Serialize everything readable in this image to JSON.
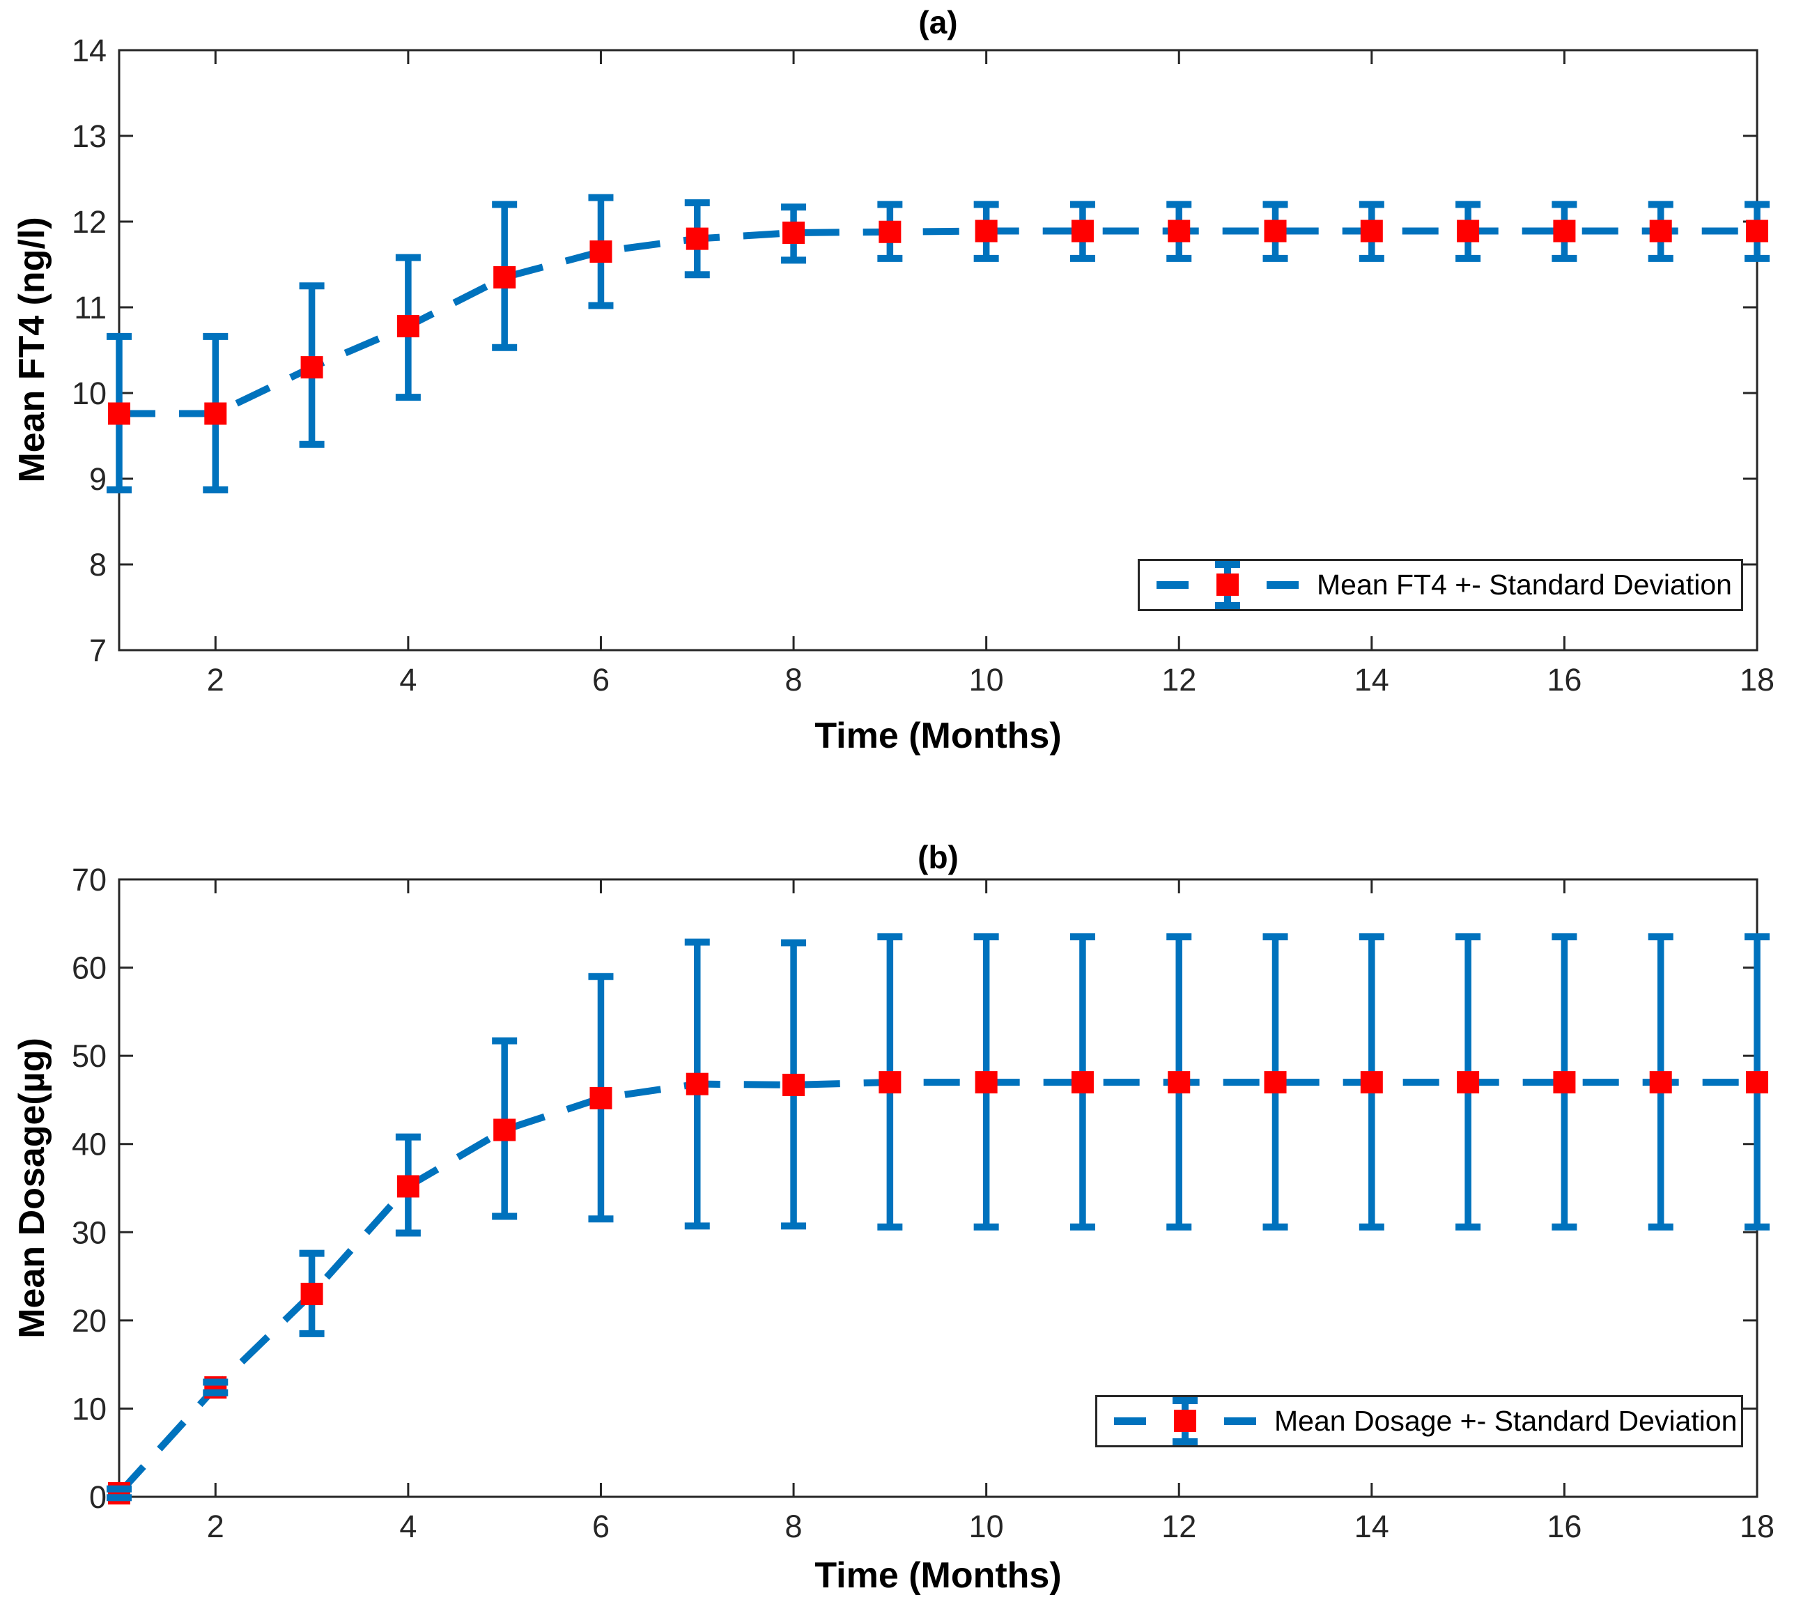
{
  "colors": {
    "line": "#0072BD",
    "marker": "#FF0000",
    "axis": "#262626",
    "text": "#000000",
    "background": "#ffffff"
  },
  "chart_data": [
    {
      "type": "line",
      "title": "(a)",
      "xlabel": "Time (Months)",
      "ylabel": "Mean FT4 (ng/l)",
      "legend_position": "southeast",
      "grid": false,
      "xlim": [
        1,
        18
      ],
      "ylim": [
        7,
        14
      ],
      "xticks": [
        2,
        4,
        6,
        8,
        10,
        12,
        14,
        16,
        18
      ],
      "yticks": [
        7,
        8,
        9,
        10,
        11,
        12,
        13,
        14
      ],
      "line_style": "dashed",
      "marker": "square",
      "series": [
        {
          "name": "Mean FT4 +- Standard Deviation",
          "x": [
            1,
            2,
            3,
            4,
            5,
            6,
            7,
            8,
            9,
            10,
            11,
            12,
            13,
            14,
            15,
            16,
            17,
            18
          ],
          "mean": [
            9.76,
            9.76,
            10.3,
            10.78,
            11.35,
            11.65,
            11.8,
            11.87,
            11.88,
            11.89,
            11.89,
            11.89,
            11.89,
            11.89,
            11.89,
            11.89,
            11.89,
            11.89
          ],
          "upper": [
            10.66,
            10.66,
            11.25,
            11.58,
            12.2,
            12.28,
            12.22,
            12.17,
            12.2,
            12.2,
            12.2,
            12.2,
            12.2,
            12.2,
            12.2,
            12.2,
            12.2,
            12.2
          ],
          "lower": [
            8.87,
            8.87,
            9.4,
            9.95,
            10.53,
            11.02,
            11.38,
            11.55,
            11.57,
            11.57,
            11.57,
            11.57,
            11.57,
            11.57,
            11.57,
            11.57,
            11.57,
            11.57
          ]
        }
      ]
    },
    {
      "type": "line",
      "title": "(b)",
      "xlabel": "Time (Months)",
      "ylabel": "Mean Dosage(µg)",
      "legend_position": "southeast",
      "grid": false,
      "xlim": [
        1,
        18
      ],
      "ylim": [
        0,
        70
      ],
      "xticks": [
        2,
        4,
        6,
        8,
        10,
        12,
        14,
        16,
        18
      ],
      "yticks": [
        0,
        10,
        20,
        30,
        40,
        50,
        60,
        70
      ],
      "line_style": "dashed",
      "marker": "square",
      "series": [
        {
          "name": "Mean Dosage +- Standard Deviation",
          "x": [
            1,
            2,
            3,
            4,
            5,
            6,
            7,
            8,
            9,
            10,
            11,
            12,
            13,
            14,
            15,
            16,
            17,
            18
          ],
          "mean": [
            0.4,
            12.4,
            23.0,
            35.2,
            41.6,
            45.2,
            46.8,
            46.7,
            47.0,
            47.0,
            47.0,
            47.0,
            47.0,
            47.0,
            47.0,
            47.0,
            47.0,
            47.0
          ],
          "upper": [
            0.9,
            13.0,
            27.6,
            40.8,
            51.7,
            59.0,
            62.9,
            62.8,
            63.5,
            63.5,
            63.5,
            63.5,
            63.5,
            63.5,
            63.5,
            63.5,
            63.5,
            63.5
          ],
          "lower": [
            -0.1,
            11.8,
            18.5,
            29.9,
            31.8,
            31.5,
            30.7,
            30.7,
            30.6,
            30.6,
            30.6,
            30.6,
            30.6,
            30.6,
            30.6,
            30.6,
            30.6,
            30.6
          ]
        }
      ]
    }
  ]
}
